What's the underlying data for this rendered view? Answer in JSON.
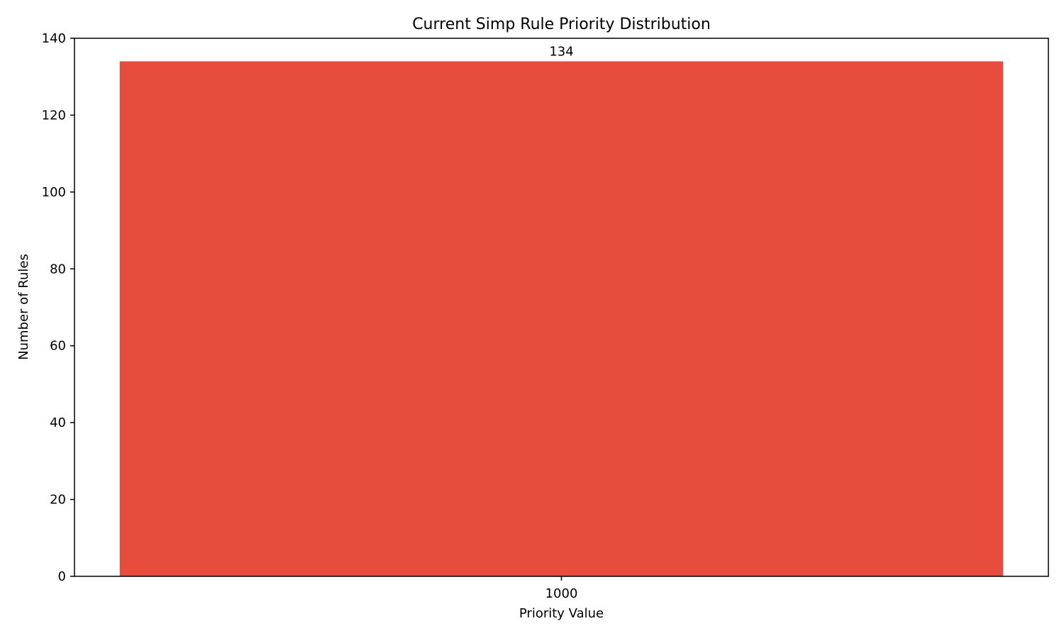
{
  "chart_data": {
    "type": "bar",
    "title": "Current Simp Rule Priority Distribution",
    "xlabel": "Priority Value",
    "ylabel": "Number of Rules",
    "categories": [
      "1000"
    ],
    "values": [
      134
    ],
    "data_labels": [
      "134"
    ],
    "ylim": [
      0,
      140
    ],
    "yticks": [
      0,
      20,
      40,
      60,
      80,
      100,
      120,
      140
    ],
    "bar_color": "#e74c3c",
    "grid": false,
    "legend": "none"
  }
}
